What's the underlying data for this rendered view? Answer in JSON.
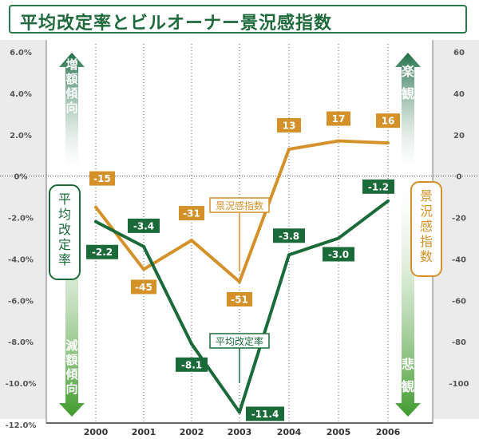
{
  "title": "平均改定率とビルオーナー景況感指数",
  "colors": {
    "green": "#1b6a3a",
    "orange": "#d4912a",
    "panel": "#ebebeb",
    "label_green_bg": "#1b6a3a",
    "label_orange_bg": "#d4912a"
  },
  "labels": {
    "up_arrow": "増額傾向",
    "down_arrow": "減額傾向",
    "left_axis_title": "平均改定率",
    "right_axis_title": "景況感指数",
    "right_up": "楽観",
    "right_down": "悲観",
    "series_label_index": "景況感指数",
    "series_label_rate": "平均改定率"
  },
  "chart_data": {
    "type": "line",
    "x": [
      "2000",
      "2001",
      "2002",
      "2003",
      "2004",
      "2005",
      "2006"
    ],
    "left_ticks": [
      "6.0%",
      "4.0%",
      "2.0%",
      "0%",
      "-2.0%",
      "-4.0%",
      "-6.0%",
      "-8.0%",
      "-10.0%",
      "-12.0%"
    ],
    "right_ticks": [
      "60",
      "40",
      "20",
      "0",
      "-20",
      "-40",
      "-60",
      "-80",
      "-100"
    ],
    "ylim_left": [
      -12,
      6
    ],
    "ylim_right": [
      -120,
      60
    ],
    "series": [
      {
        "name": "平均改定率",
        "axis": "left",
        "color": "#1b6a3a",
        "values": [
          -2.2,
          -3.4,
          -8.1,
          -11.4,
          -3.8,
          -3.0,
          -1.2
        ],
        "labels": [
          "-2.2",
          "-3.4",
          "-8.1",
          "-11.4",
          "-3.8",
          "-3.0",
          "-1.2"
        ]
      },
      {
        "name": "景況感指数",
        "axis": "right",
        "color": "#d4912a",
        "values": [
          -15,
          -45,
          -31,
          -51,
          13,
          17,
          16
        ],
        "labels": [
          "-15",
          "-45",
          "-31",
          "-51",
          "13",
          "17",
          "16"
        ]
      }
    ]
  }
}
